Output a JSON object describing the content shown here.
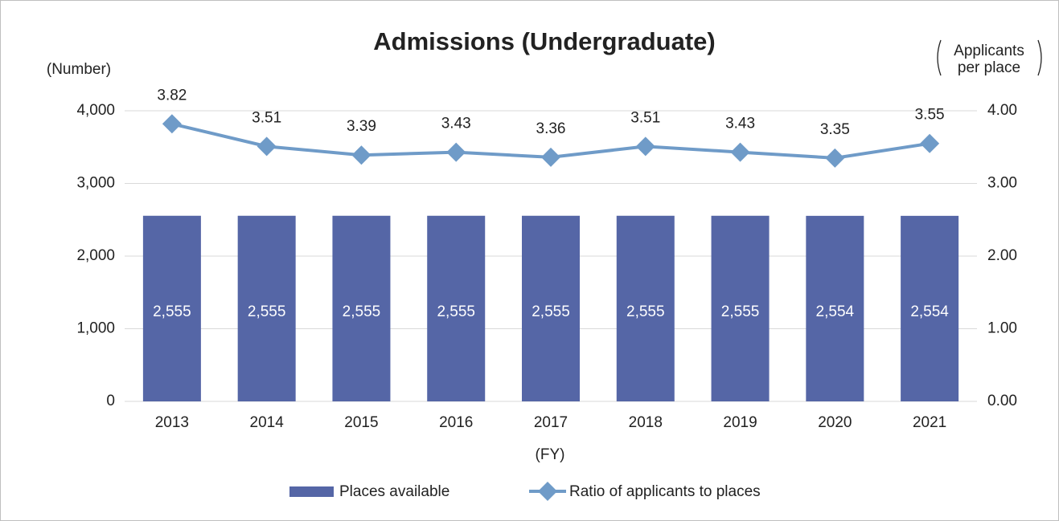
{
  "chart_data": {
    "type": "bar_line",
    "title": "Admissions (Undergraduate)",
    "y_label": "(Number)",
    "y2_label_lines": [
      "Applicants",
      "per place"
    ],
    "x_label": "(FY)",
    "categories": [
      "2013",
      "2014",
      "2015",
      "2016",
      "2017",
      "2018",
      "2019",
      "2020",
      "2021"
    ],
    "series": [
      {
        "name": "Places available",
        "type": "bar",
        "color": "#5566a6",
        "values": [
          2555,
          2555,
          2555,
          2555,
          2555,
          2555,
          2555,
          2554,
          2554
        ],
        "value_labels": [
          "2,555",
          "2,555",
          "2,555",
          "2,555",
          "2,555",
          "2,555",
          "2,555",
          "2,554",
          "2,554"
        ]
      },
      {
        "name": "Ratio of applicants to places",
        "type": "line",
        "axis": "y2",
        "color": "#6f9bc8",
        "values": [
          3.82,
          3.51,
          3.39,
          3.43,
          3.36,
          3.51,
          3.43,
          3.35,
          3.55
        ]
      }
    ],
    "ylim": [
      0,
      4000
    ],
    "yticks": [
      0,
      {
        "value": 1000,
        "label": "1,000"
      },
      {
        "value": 2000,
        "label": "2,000"
      },
      {
        "value": 3000,
        "label": "3,000"
      },
      {
        "value": 4000,
        "label": "4,000"
      }
    ],
    "y2lim": [
      0,
      4
    ],
    "y2ticks": [
      {
        "value": 0,
        "label": "0.00"
      },
      {
        "value": 1,
        "label": "1.00"
      },
      {
        "value": 2,
        "label": "2.00"
      },
      {
        "value": 3,
        "label": "3.00"
      },
      {
        "value": 4,
        "label": "4.00"
      }
    ],
    "grid": true
  }
}
